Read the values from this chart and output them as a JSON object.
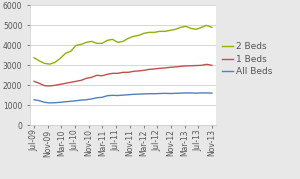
{
  "x_labels": [
    "Jul-09",
    "Nov-09",
    "Mar-10",
    "Jul-10",
    "Nov-10",
    "Mar-11",
    "Jul-11",
    "Nov-11",
    "Mar-12",
    "Jul-12",
    "Nov-12",
    "Mar-13",
    "Jul-13",
    "Nov-13"
  ],
  "two_beds": [
    3380,
    3220,
    3100,
    3060,
    3150,
    3350,
    3600,
    3700,
    4000,
    4050,
    4150,
    4200,
    4100,
    4100,
    4250,
    4300,
    4150,
    4200,
    4350,
    4450,
    4500,
    4600,
    4650,
    4650,
    4700,
    4700,
    4750,
    4800,
    4900,
    4950,
    4850,
    4800,
    4900,
    5000,
    4900
  ],
  "one_beds": [
    2200,
    2100,
    1980,
    1970,
    2000,
    2050,
    2100,
    2150,
    2200,
    2250,
    2350,
    2400,
    2500,
    2480,
    2550,
    2600,
    2600,
    2650,
    2650,
    2700,
    2720,
    2750,
    2800,
    2820,
    2850,
    2870,
    2900,
    2920,
    2950,
    2970,
    2980,
    2990,
    3000,
    3050,
    3000
  ],
  "all_beds": [
    1280,
    1230,
    1150,
    1120,
    1130,
    1150,
    1180,
    1200,
    1230,
    1260,
    1280,
    1320,
    1380,
    1400,
    1480,
    1500,
    1490,
    1510,
    1530,
    1550,
    1560,
    1570,
    1580,
    1580,
    1590,
    1600,
    1590,
    1600,
    1610,
    1620,
    1620,
    1610,
    1620,
    1620,
    1610
  ],
  "color_2beds": "#8CB400",
  "color_1beds": "#C0504D",
  "color_allbeds": "#4F81BD",
  "ylim": [
    0,
    6000
  ],
  "yticks": [
    0,
    1000,
    2000,
    3000,
    4000,
    5000,
    6000
  ],
  "legend_labels": [
    "2 Beds",
    "1 Beds",
    "All Beds"
  ],
  "bg_color": "#E8E8E8",
  "plot_bg": "#FFFFFF",
  "grid_color": "#C8C8C8",
  "tick_label_fontsize": 5.5,
  "legend_fontsize": 6.5
}
